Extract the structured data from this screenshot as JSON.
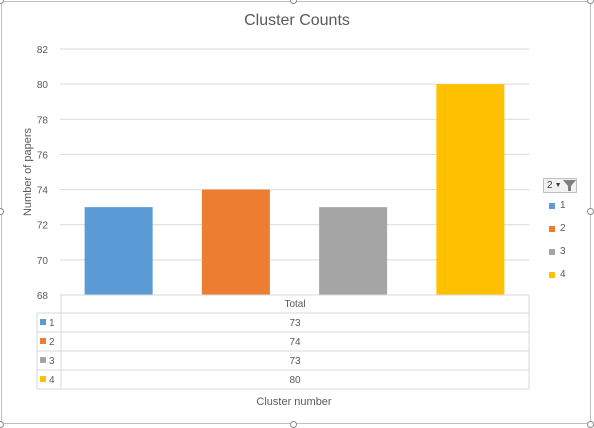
{
  "chart_data": {
    "type": "bar",
    "title": "Cluster Counts",
    "xlabel": "Cluster number",
    "ylabel": "Number of papers",
    "ylim": [
      68,
      82
    ],
    "yticks": [
      68,
      70,
      72,
      74,
      76,
      78,
      80,
      82
    ],
    "grid": true,
    "categories": [
      "1",
      "2",
      "3",
      "4"
    ],
    "values": [
      73,
      74,
      73,
      80
    ],
    "colors": [
      "#5b9bd5",
      "#ed7d31",
      "#a5a5a5",
      "#ffc000"
    ],
    "legend_position": "right",
    "data_table": {
      "header": "Total",
      "rows": [
        {
          "key": "1",
          "value": "73"
        },
        {
          "key": "2",
          "value": "74"
        },
        {
          "key": "3",
          "value": "73"
        },
        {
          "key": "4",
          "value": "80"
        }
      ]
    }
  },
  "filter_button": {
    "label": "2"
  },
  "legend": {
    "items": [
      {
        "label": "1",
        "color": "#5b9bd5"
      },
      {
        "label": "2",
        "color": "#ed7d31"
      },
      {
        "label": "3",
        "color": "#a5a5a5"
      },
      {
        "label": "4",
        "color": "#ffc000"
      }
    ]
  }
}
